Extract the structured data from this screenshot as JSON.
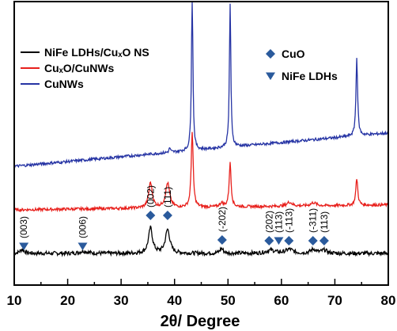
{
  "chart_data": {
    "type": "line",
    "xlabel": "2θ/ Degree",
    "xlim": [
      10,
      80
    ],
    "x_ticks": [
      "10",
      "20",
      "30",
      "40",
      "50",
      "60",
      "70",
      "80"
    ],
    "series": [
      {
        "name": "NiFe LDHs/CuₓO NS",
        "color": "#000000",
        "baseline": 0.0,
        "slope": 0.0,
        "peaks": [
          [
            11.5,
            0.05,
            0.5
          ],
          [
            23,
            0.03,
            0.8
          ],
          [
            35.5,
            0.32,
            0.45
          ],
          [
            38.7,
            0.3,
            0.5
          ],
          [
            48.8,
            0.06,
            0.4
          ],
          [
            58,
            0.04,
            1.0
          ],
          [
            61.5,
            0.05,
            0.8
          ],
          [
            66,
            0.05,
            0.6
          ],
          [
            68,
            0.04,
            0.6
          ]
        ]
      },
      {
        "name": "CuₓO/CuNWs",
        "color": "#e8201c",
        "baseline": 0.55,
        "slope": 0.0009,
        "peaks": [
          [
            35.5,
            0.32,
            0.4
          ],
          [
            38.7,
            0.31,
            0.45
          ],
          [
            43.3,
            0.95,
            0.22
          ],
          [
            48.8,
            0.05,
            0.4
          ],
          [
            50.4,
            0.55,
            0.22
          ],
          [
            61.5,
            0.05,
            0.6
          ],
          [
            66,
            0.04,
            0.6
          ],
          [
            74.1,
            0.34,
            0.22
          ]
        ]
      },
      {
        "name": "CuNWs",
        "color": "#2634a4",
        "baseline": 1.1,
        "slope": 0.006,
        "peaks": [
          [
            39.1,
            0.06,
            0.15
          ],
          [
            43.3,
            2.0,
            0.16
          ],
          [
            50.4,
            1.8,
            0.16
          ],
          [
            74.1,
            1.0,
            0.18
          ]
        ]
      }
    ],
    "legend_left": [
      {
        "label": "NiFe LDHs/CuₓO NS",
        "color": "#000000"
      },
      {
        "label": "CuₓO/CuNWs",
        "color": "#e8201c"
      },
      {
        "label": "CuNWs",
        "color": "#2634a4"
      }
    ],
    "legend_right": [
      {
        "label": "CuO",
        "marker": "diamond",
        "color": "#2a5a9c"
      },
      {
        "label": "NiFe LDHs",
        "marker": "triangle-down",
        "color": "#2a5a9c"
      }
    ],
    "markers": [
      {
        "x": 11.8,
        "shape": "triangle-down",
        "label": "(003)"
      },
      {
        "x": 22.8,
        "shape": "triangle-down",
        "label": "(006)"
      },
      {
        "x": 35.5,
        "shape": "diamond",
        "label": "(002)"
      },
      {
        "x": 38.7,
        "shape": "diamond",
        "label": "(111)"
      },
      {
        "x": 48.9,
        "shape": "diamond",
        "label": "(-202)"
      },
      {
        "x": 57.7,
        "shape": "diamond",
        "label": "(202)"
      },
      {
        "x": 59.5,
        "shape": "triangle-down",
        "label": "(113)"
      },
      {
        "x": 61.4,
        "shape": "diamond",
        "label": "(-113)"
      },
      {
        "x": 65.9,
        "shape": "diamond",
        "label": "(-311)"
      },
      {
        "x": 68.0,
        "shape": "diamond",
        "label": "(113)"
      }
    ]
  }
}
